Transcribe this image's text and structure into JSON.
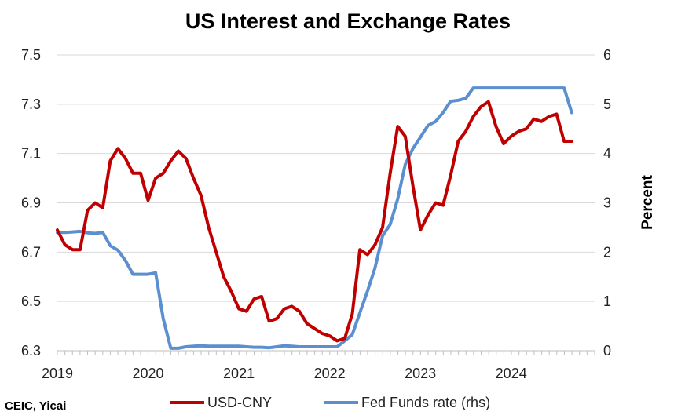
{
  "chart_data": {
    "type": "line",
    "title": "US Interest and Exchange Rates",
    "y_left": {
      "ticks": [
        "7.5",
        "7.3",
        "7.1",
        "6.9",
        "6.7",
        "6.5",
        "6.3"
      ],
      "range": [
        6.3,
        7.5
      ]
    },
    "y_right": {
      "label": "Percent",
      "ticks": [
        "6",
        "5",
        "4",
        "3",
        "2",
        "1",
        "0"
      ],
      "range": [
        0,
        6
      ]
    },
    "x_ticks": [
      "2019",
      "2020",
      "2021",
      "2022",
      "2023",
      "2024"
    ],
    "x_range": [
      2019,
      2024.92
    ],
    "grid": true,
    "legend": "bottom",
    "source": "CEIC, Yicai",
    "series": [
      {
        "name": "USD-CNY",
        "axis": "left",
        "color": "#c00000",
        "x": [
          2019.0,
          2019.083,
          2019.167,
          2019.25,
          2019.333,
          2019.417,
          2019.5,
          2019.583,
          2019.667,
          2019.75,
          2019.833,
          2019.917,
          2020.0,
          2020.083,
          2020.167,
          2020.25,
          2020.333,
          2020.417,
          2020.5,
          2020.583,
          2020.667,
          2020.75,
          2020.833,
          2020.917,
          2021.0,
          2021.083,
          2021.167,
          2021.25,
          2021.333,
          2021.417,
          2021.5,
          2021.583,
          2021.667,
          2021.75,
          2021.833,
          2021.917,
          2022.0,
          2022.083,
          2022.167,
          2022.25,
          2022.333,
          2022.417,
          2022.5,
          2022.583,
          2022.667,
          2022.75,
          2022.833,
          2022.917,
          2023.0,
          2023.083,
          2023.167,
          2023.25,
          2023.333,
          2023.417,
          2023.5,
          2023.583,
          2023.667,
          2023.75,
          2023.833,
          2023.917,
          2024.0,
          2024.083,
          2024.167,
          2024.25,
          2024.333,
          2024.417,
          2024.5,
          2024.583,
          2024.667
        ],
        "values": [
          6.79,
          6.73,
          6.71,
          6.71,
          6.87,
          6.9,
          6.88,
          7.07,
          7.12,
          7.08,
          7.02,
          7.02,
          6.91,
          7.0,
          7.02,
          7.07,
          7.11,
          7.08,
          7.0,
          6.93,
          6.8,
          6.7,
          6.6,
          6.54,
          6.47,
          6.46,
          6.51,
          6.52,
          6.42,
          6.43,
          6.47,
          6.48,
          6.46,
          6.41,
          6.39,
          6.37,
          6.36,
          6.34,
          6.35,
          6.45,
          6.71,
          6.69,
          6.73,
          6.8,
          7.02,
          7.21,
          7.17,
          6.97,
          6.79,
          6.85,
          6.9,
          6.89,
          7.01,
          7.15,
          7.19,
          7.25,
          7.29,
          7.31,
          7.21,
          7.14,
          7.17,
          7.19,
          7.2,
          7.24,
          7.23,
          7.25,
          7.26,
          7.15,
          7.15
        ]
      },
      {
        "name": "Fed Funds rate (rhs)",
        "axis": "right",
        "color": "#5b8fd0",
        "x": [
          2019.0,
          2019.083,
          2019.167,
          2019.25,
          2019.333,
          2019.417,
          2019.5,
          2019.583,
          2019.667,
          2019.75,
          2019.833,
          2019.917,
          2020.0,
          2020.083,
          2020.167,
          2020.25,
          2020.333,
          2020.417,
          2020.5,
          2020.583,
          2020.667,
          2020.75,
          2020.833,
          2020.917,
          2021.0,
          2021.083,
          2021.167,
          2021.25,
          2021.333,
          2021.417,
          2021.5,
          2021.583,
          2021.667,
          2021.75,
          2021.833,
          2021.917,
          2022.0,
          2022.083,
          2022.167,
          2022.25,
          2022.333,
          2022.417,
          2022.5,
          2022.583,
          2022.667,
          2022.75,
          2022.833,
          2022.917,
          2023.0,
          2023.083,
          2023.167,
          2023.25,
          2023.333,
          2023.417,
          2023.5,
          2023.583,
          2023.667,
          2023.75,
          2023.833,
          2023.917,
          2024.0,
          2024.083,
          2024.167,
          2024.25,
          2024.333,
          2024.417,
          2024.5,
          2024.583,
          2024.667
        ],
        "values": [
          2.4,
          2.4,
          2.41,
          2.42,
          2.39,
          2.38,
          2.4,
          2.13,
          2.04,
          1.83,
          1.55,
          1.55,
          1.55,
          1.58,
          0.65,
          0.05,
          0.05,
          0.08,
          0.09,
          0.1,
          0.09,
          0.09,
          0.09,
          0.09,
          0.09,
          0.08,
          0.07,
          0.07,
          0.06,
          0.08,
          0.1,
          0.09,
          0.08,
          0.08,
          0.08,
          0.08,
          0.08,
          0.08,
          0.2,
          0.33,
          0.77,
          1.21,
          1.68,
          2.33,
          2.56,
          3.08,
          3.78,
          4.1,
          4.33,
          4.57,
          4.65,
          4.83,
          5.06,
          5.08,
          5.12,
          5.33,
          5.33,
          5.33,
          5.33,
          5.33,
          5.33,
          5.33,
          5.33,
          5.33,
          5.33,
          5.33,
          5.33,
          5.33,
          4.83
        ]
      }
    ]
  }
}
